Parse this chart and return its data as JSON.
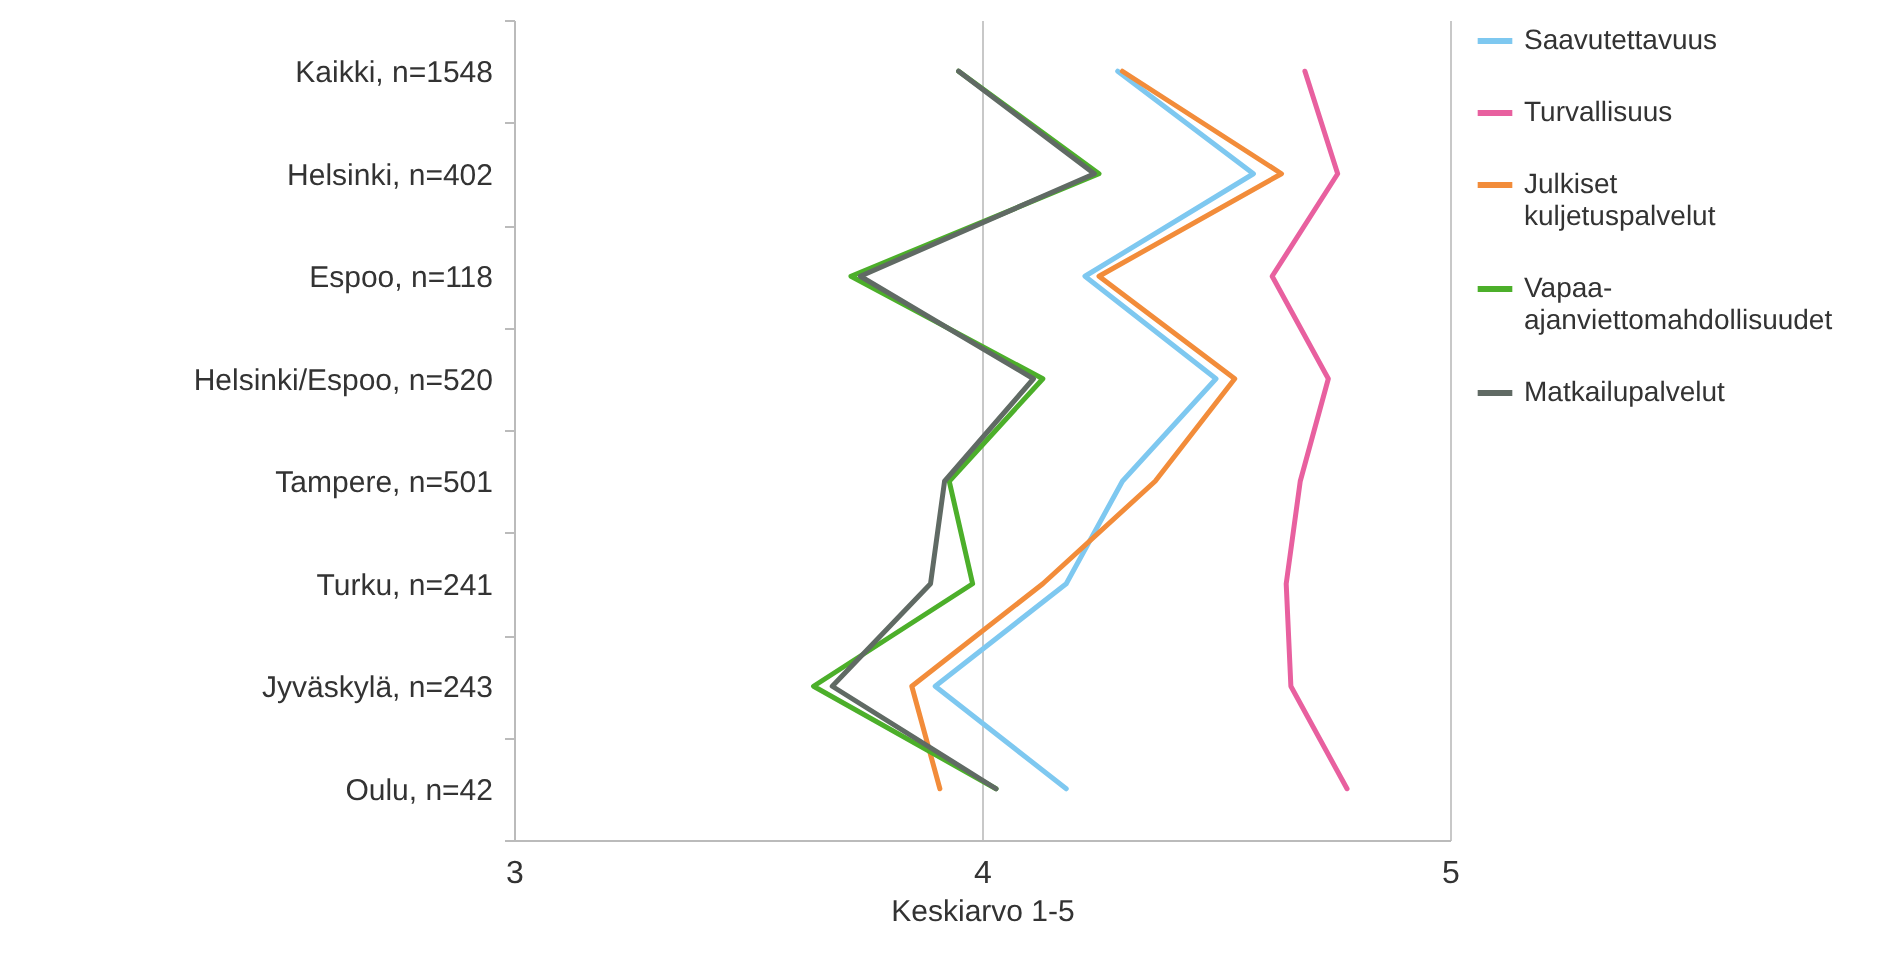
{
  "chart_data": {
    "type": "line",
    "xlabel": "Keskiarvo 1-5",
    "categories": [
      "Kaikki, n=1548",
      "Helsinki, n=402",
      "Espoo, n=118",
      "Helsinki/Espoo, n=520",
      "Tampere, n=501",
      "Turku, n=241",
      "Jyväskylä, n=243",
      "Oulu, n=42"
    ],
    "orientation": "horizontal",
    "xlim": [
      3,
      5
    ],
    "xticks": [
      3,
      4,
      5
    ],
    "grid": "x",
    "legend": "right",
    "marker": "none",
    "line_style": "solid",
    "series": [
      {
        "name": "Saavutettavuus",
        "color": "#7ec8f0",
        "values": [
          4.29,
          4.58,
          4.22,
          4.5,
          4.3,
          4.18,
          3.9,
          4.18
        ]
      },
      {
        "name": "Turvallisuus",
        "color": "#e8609f",
        "values": [
          4.69,
          4.76,
          4.62,
          4.74,
          4.68,
          4.65,
          4.66,
          4.78
        ]
      },
      {
        "name": "Julkiset kuljetuspalvelut",
        "color": "#f28c3a",
        "values": [
          4.3,
          4.64,
          4.25,
          4.54,
          4.37,
          4.13,
          3.85,
          3.91
        ]
      },
      {
        "name": "Vapaa-ajanviettomahdollisuudet",
        "color": "#4caf2a",
        "values": [
          3.95,
          4.25,
          3.72,
          4.13,
          3.93,
          3.98,
          3.64,
          4.03
        ]
      },
      {
        "name": "Matkailupalvelut",
        "color": "#606a64",
        "values": [
          3.95,
          4.24,
          3.74,
          4.11,
          3.92,
          3.89,
          3.68,
          4.03
        ]
      }
    ]
  }
}
